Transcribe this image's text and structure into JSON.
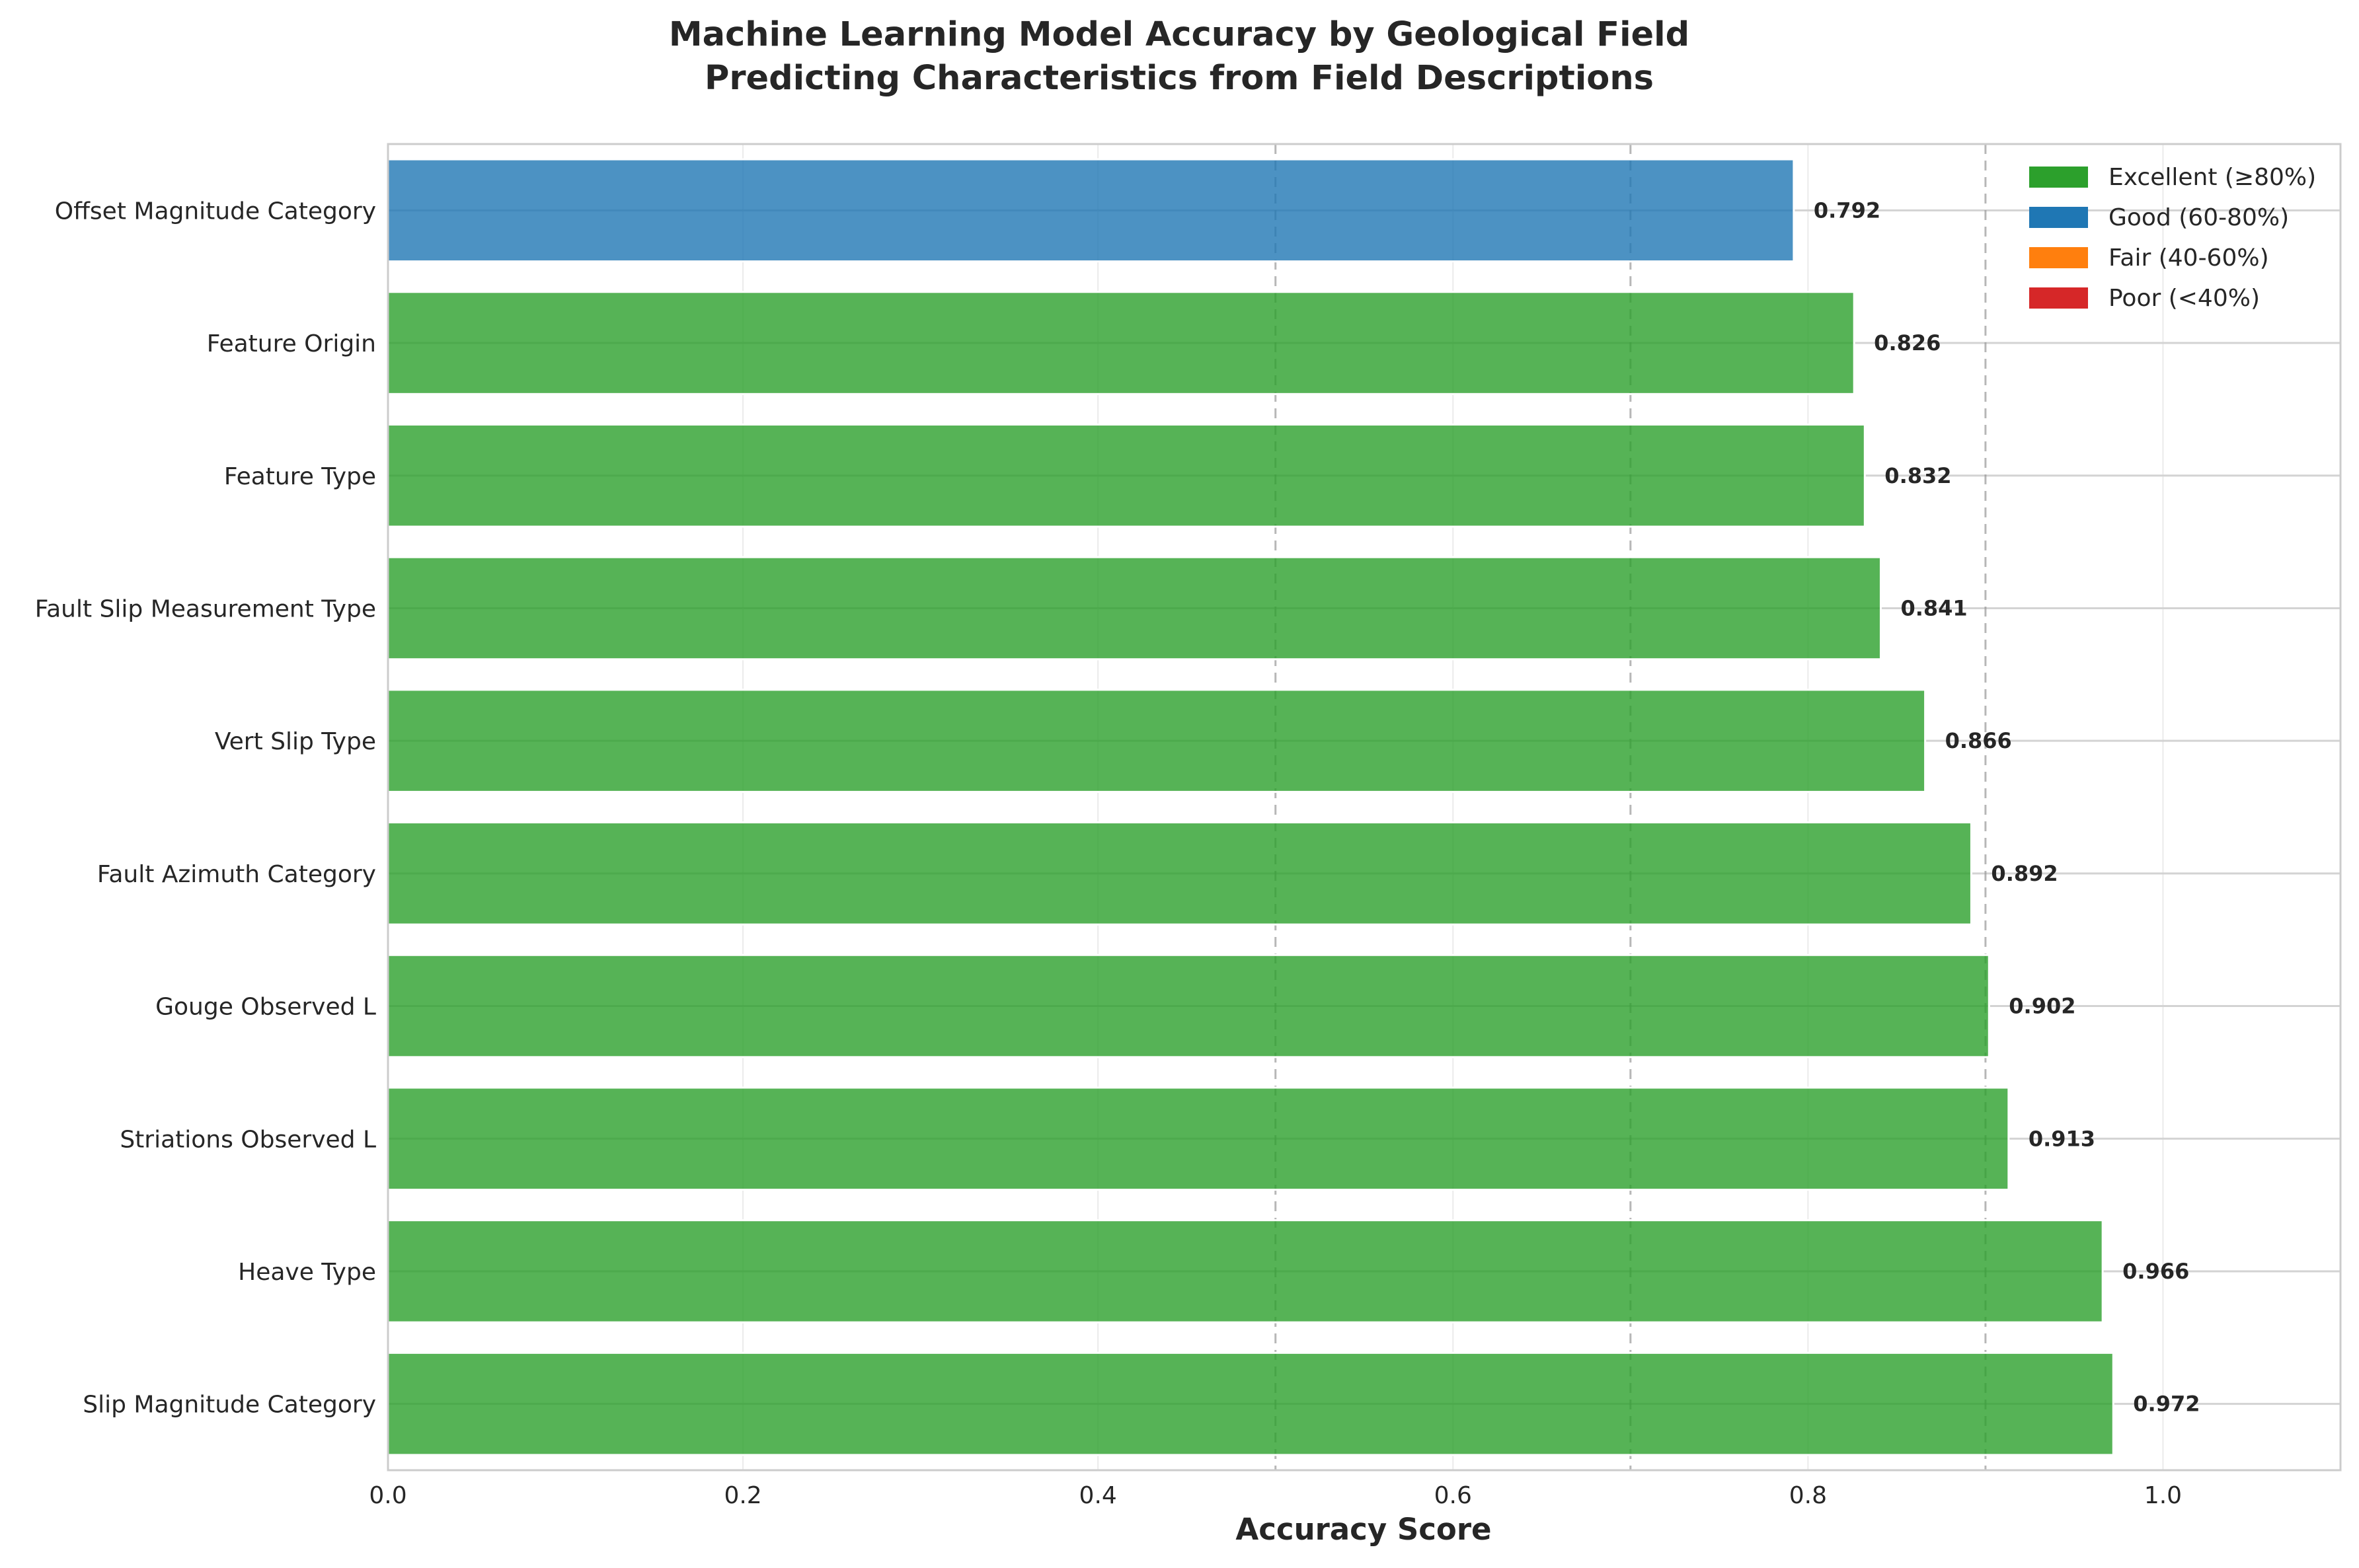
{
  "chart_data": {
    "type": "bar",
    "orientation": "horizontal",
    "title": "Machine Learning Model Accuracy by Geological Field",
    "subtitle": "Predicting Characteristics from Field Descriptions",
    "xlabel": "Accuracy Score",
    "ylabel": "",
    "xlim": [
      0,
      1.1
    ],
    "xticks": [
      "0.0",
      "0.2",
      "0.4",
      "0.6",
      "0.8",
      "1.0"
    ],
    "xtick_values": [
      0,
      0.2,
      0.4,
      0.6,
      0.8,
      1.0
    ],
    "reference_lines": [
      0.5,
      0.7,
      0.9
    ],
    "grid": true,
    "legend_position": "top-right",
    "categories": [
      "Offset Magnitude Category",
      "Feature Origin",
      "Feature Type",
      "Fault Slip Measurement Type",
      "Vert Slip Type",
      "Fault Azimuth Category",
      "Gouge Observed L",
      "Striations Observed L",
      "Heave Type",
      "Slip Magnitude Category"
    ],
    "values": [
      0.792,
      0.826,
      0.832,
      0.841,
      0.866,
      0.892,
      0.902,
      0.913,
      0.966,
      0.972
    ],
    "value_labels": [
      "0.792",
      "0.826",
      "0.832",
      "0.841",
      "0.866",
      "0.892",
      "0.902",
      "0.913",
      "0.966",
      "0.972"
    ],
    "bar_colors": [
      "#1f77b4",
      "#2ca02c",
      "#2ca02c",
      "#2ca02c",
      "#2ca02c",
      "#2ca02c",
      "#2ca02c",
      "#2ca02c",
      "#2ca02c",
      "#2ca02c"
    ],
    "legend": [
      {
        "label": "Excellent (≥80%)",
        "color": "#2ca02c"
      },
      {
        "label": "Good (60-80%)",
        "color": "#1f77b4"
      },
      {
        "label": "Fair (40-60%)",
        "color": "#ff7f0e"
      },
      {
        "label": "Poor (<40%)",
        "color": "#d62728"
      }
    ]
  }
}
